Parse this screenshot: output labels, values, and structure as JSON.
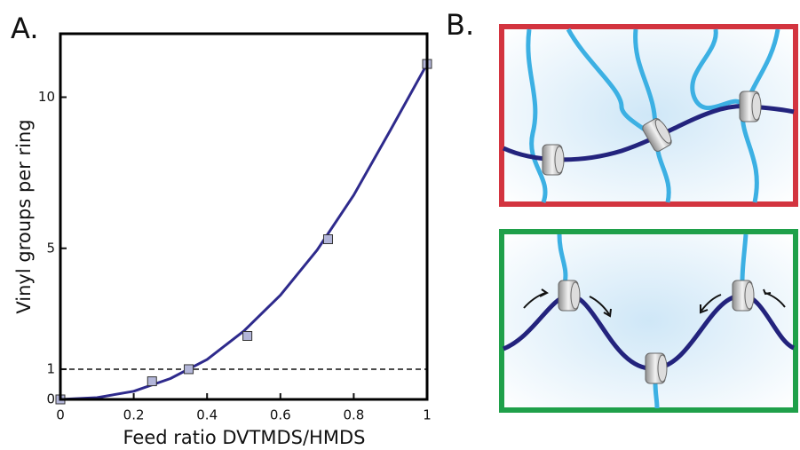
{
  "chart_data": {
    "type": "scatter",
    "panel_label": "A.",
    "x_label": "Feed ratio DVTMDS/HMDS",
    "y_label": "Vinyl groups per ring",
    "points": {
      "color": "#b3b6d9",
      "x": [
        0,
        0.25,
        0.35,
        0.51,
        0.73,
        1.0
      ],
      "values": [
        0,
        0.6,
        1.0,
        2.1,
        5.3,
        11.1
      ]
    },
    "fit": {
      "color": "#2e2a8c",
      "x": [
        0,
        0.1,
        0.2,
        0.3,
        0.4,
        0.5,
        0.6,
        0.7,
        0.8,
        0.9,
        1.0
      ],
      "values": [
        0,
        0.06,
        0.27,
        0.69,
        1.32,
        2.26,
        3.45,
        4.94,
        6.76,
        8.91,
        11.1
      ]
    },
    "reference_line": 1,
    "xlim": [
      0,
      1
    ],
    "ylim": [
      0,
      12.1
    ],
    "xticks": [
      0,
      0.2,
      0.4,
      0.6,
      0.8,
      1
    ],
    "yticks": [
      0,
      1,
      5,
      10
    ]
  },
  "diagram": {
    "panel_label": "B."
  }
}
